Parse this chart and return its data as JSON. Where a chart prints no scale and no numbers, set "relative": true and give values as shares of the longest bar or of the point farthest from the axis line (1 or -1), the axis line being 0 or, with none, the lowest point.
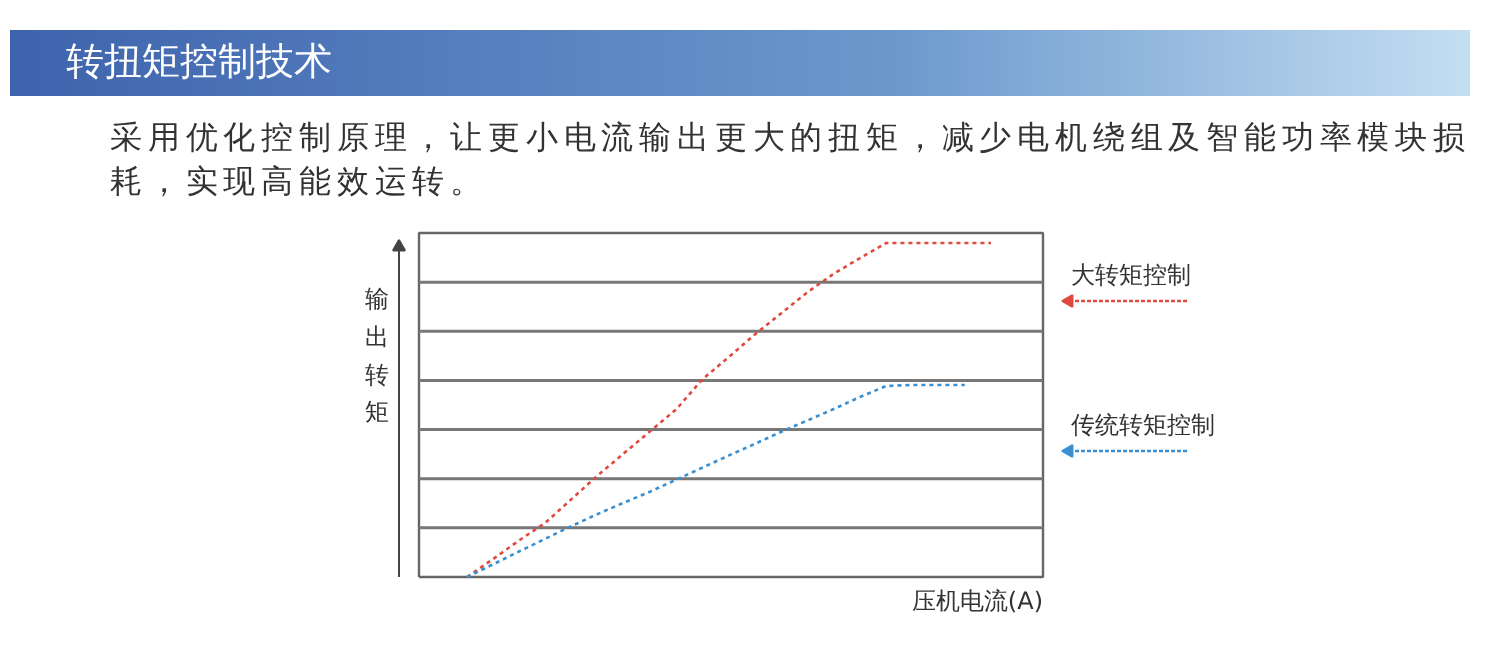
{
  "chart_data": {
    "type": "line",
    "title": "转扭矩控制技术",
    "subtitle": "采用优化控制原理，让更小电流输出更大的扭矩，减少电机绕组及智能功率模块损耗，实现高能效运转。",
    "xlabel": "压机电流(A)",
    "ylabel": "输出转矩",
    "relative": true,
    "grid": "y",
    "legend": "right",
    "line_style": "dotted",
    "categories": [
      null,
      null,
      null,
      null,
      null,
      null,
      null,
      null,
      null,
      null,
      null,
      null,
      null,
      null,
      null,
      null,
      null,
      null,
      null,
      null,
      null
    ],
    "series": [
      {
        "name": "大转矩控制",
        "color": "#e0493e",
        "values": [
          0,
          0.054,
          0.11,
          0.163,
          0.234,
          0.305,
          0.371,
          0.437,
          0.503,
          0.593,
          0.659,
          0.727,
          0.79,
          0.853,
          0.908,
          0.955,
          1,
          1,
          1,
          1,
          1
        ]
      },
      {
        "name": "传统转矩控制",
        "color": "#3a8fd0",
        "values": [
          0,
          0.038,
          0.077,
          0.115,
          0.153,
          0.189,
          0.223,
          0.256,
          0.292,
          0.328,
          0.364,
          0.399,
          0.435,
          0.469,
          0.503,
          0.539,
          0.572,
          0.575,
          0.575,
          0.575,
          null
        ]
      }
    ]
  }
}
